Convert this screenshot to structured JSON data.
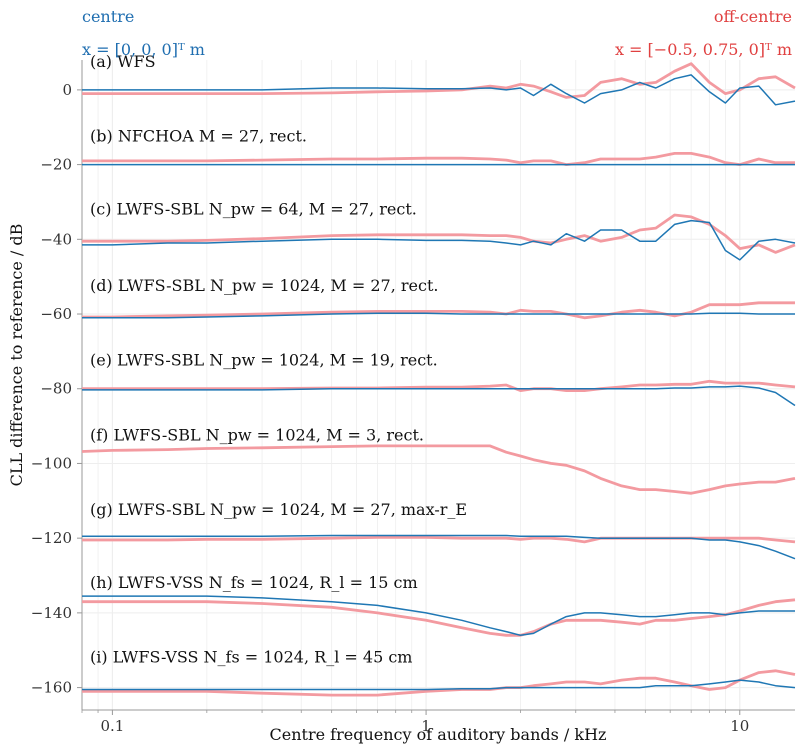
{
  "colors": {
    "centre": "#1f77b4",
    "offcentre": "#f39aa0",
    "grid": "#eeeeee",
    "axis": "#999999",
    "centre_text": "#1f6eb0",
    "offcentre_text": "#e04040"
  },
  "legend": {
    "centre": {
      "name": "centre",
      "position": "x = [0, 0, 0]ᵀ m"
    },
    "offcentre": {
      "name": "off-centre",
      "position": "x = [−0.5, 0.75, 0]ᵀ m"
    }
  },
  "chart_data": {
    "type": "line",
    "xlabel": "Centre frequency of auditory bands / kHz",
    "ylabel": "CLL difference to reference / dB",
    "xscale": "log",
    "xlim": [
      0.08,
      15
    ],
    "ylim": [
      -166,
      8
    ],
    "xticks": [
      {
        "value": 0.1,
        "label": "0.1"
      },
      {
        "value": 1,
        "label": "1"
      },
      {
        "value": 10,
        "label": "10"
      }
    ],
    "yticks": [
      {
        "value": 0,
        "label": "0"
      },
      {
        "value": -20,
        "label": "−20"
      },
      {
        "value": -40,
        "label": "−40"
      },
      {
        "value": -60,
        "label": "−60"
      },
      {
        "value": -80,
        "label": "−80"
      },
      {
        "value": -100,
        "label": "−100"
      },
      {
        "value": -120,
        "label": "−120"
      },
      {
        "value": -140,
        "label": "−140"
      },
      {
        "value": -160,
        "label": "−160"
      }
    ],
    "grid": true,
    "x": [
      0.08,
      0.1,
      0.15,
      0.2,
      0.3,
      0.5,
      0.7,
      1,
      1.3,
      1.6,
      1.8,
      2,
      2.2,
      2.5,
      2.8,
      3.2,
      3.6,
      4.2,
      4.8,
      5.4,
      6.2,
      7,
      8,
      9,
      10,
      11.5,
      13,
      15
    ],
    "panels": [
      {
        "label": "(a) WFS",
        "label_y": 7.5,
        "centre": [
          0,
          0,
          0,
          0,
          0,
          0.5,
          0.5,
          0.3,
          0.3,
          0.5,
          0,
          0.5,
          -1.5,
          1.5,
          -1,
          -3.5,
          -1,
          0,
          2,
          0.5,
          3,
          4,
          -0.5,
          -3.5,
          0.5,
          1,
          -4,
          -3
        ],
        "offcentre": [
          -1,
          -1,
          -1,
          -1,
          -1,
          -0.8,
          -0.5,
          -0.3,
          0,
          1,
          0.5,
          1.5,
          1,
          -0.5,
          -2,
          -1.5,
          2,
          3,
          1.5,
          2,
          5,
          7,
          2,
          -1,
          0,
          3,
          3.5,
          0.5
        ]
      },
      {
        "label": "(b) NFCHOA M = 27, rect.",
        "label_y": -12.5,
        "centre": [
          -20,
          -20,
          -20,
          -20,
          -20,
          -20,
          -20,
          -20,
          -20,
          -20,
          -20,
          -20,
          -20,
          -20,
          -20,
          -20,
          -20,
          -20,
          -20,
          -20,
          -20,
          -20,
          -20,
          -20,
          -20,
          -20,
          -20,
          -20
        ],
        "offcentre": [
          -19,
          -19,
          -19,
          -19,
          -18.8,
          -18.5,
          -18.5,
          -18.3,
          -18.3,
          -18.5,
          -18.8,
          -19.5,
          -19,
          -19,
          -20,
          -19.5,
          -18.5,
          -18.5,
          -18.5,
          -18,
          -17,
          -17,
          -18,
          -19.5,
          -20,
          -18.5,
          -19.5,
          -19.5
        ]
      },
      {
        "label": "(c) LWFS-SBL N_pw = 64, M = 27, rect.",
        "label_y": -32,
        "centre": [
          -41.5,
          -41.5,
          -41,
          -41,
          -40.5,
          -40,
          -40,
          -40.3,
          -40.3,
          -40.5,
          -41,
          -41.5,
          -40.5,
          -41.5,
          -38.5,
          -40.5,
          -37.5,
          -37.5,
          -40.5,
          -40.5,
          -36,
          -35,
          -35.5,
          -43,
          -45.5,
          -40.5,
          -40,
          -41
        ],
        "offcentre": [
          -40.5,
          -40.5,
          -40.5,
          -40.3,
          -39.8,
          -39,
          -38.8,
          -38.8,
          -38.8,
          -39,
          -39,
          -39.5,
          -40.5,
          -41,
          -40,
          -39,
          -40.5,
          -39.5,
          -37.5,
          -37,
          -33.5,
          -34,
          -36,
          -39,
          -42.5,
          -41.5,
          -43.5,
          -41.5
        ]
      },
      {
        "label": "(d) LWFS-SBL N_pw = 1024, M = 27, rect.",
        "label_y": -52.5,
        "centre": [
          -61,
          -61,
          -61,
          -60.8,
          -60.5,
          -60,
          -59.8,
          -59.8,
          -60,
          -60,
          -60,
          -60,
          -60,
          -60,
          -60,
          -60,
          -60,
          -60,
          -60,
          -60,
          -60,
          -60,
          -59.8,
          -59.8,
          -59.8,
          -60,
          -60,
          -60
        ],
        "offcentre": [
          -60.8,
          -60.8,
          -60.5,
          -60.3,
          -60,
          -59.5,
          -59.3,
          -59.3,
          -59.3,
          -59.5,
          -60,
          -59,
          -59.3,
          -59.3,
          -60,
          -61,
          -60.5,
          -59.5,
          -59,
          -59.5,
          -60.5,
          -59.5,
          -57.5,
          -57.5,
          -57.5,
          -57,
          -57,
          -57
        ]
      },
      {
        "label": "(e) LWFS-SBL N_pw = 1024, M = 19, rect.",
        "label_y": -72.5,
        "centre": [
          -80.3,
          -80.3,
          -80.3,
          -80.3,
          -80.3,
          -80,
          -80,
          -80,
          -80,
          -80,
          -80,
          -80,
          -80,
          -80,
          -80,
          -80,
          -80,
          -80,
          -80,
          -80,
          -79.8,
          -79.8,
          -79.5,
          -79.5,
          -79.3,
          -79.8,
          -81,
          -84.5
        ],
        "offcentre": [
          -80,
          -80,
          -80,
          -80,
          -80,
          -79.8,
          -79.8,
          -79.6,
          -79.6,
          -79.3,
          -79,
          -80.5,
          -80,
          -80,
          -80.5,
          -80.5,
          -80,
          -79.5,
          -79,
          -79,
          -78.8,
          -78.8,
          -78,
          -78.5,
          -78.5,
          -78.5,
          -79,
          -79.5
        ]
      },
      {
        "label": "(f) LWFS-SBL N_pw = 1024, M = 3, rect.",
        "label_y": -92.5,
        "centre": [],
        "offcentre": [
          -96.8,
          -96.5,
          -96.3,
          -96,
          -95.8,
          -95.5,
          -95.3,
          -95.3,
          -95.3,
          -95.3,
          -97,
          -98,
          -99,
          -100,
          -100.5,
          -102,
          -104,
          -106,
          -107,
          -107,
          -107.5,
          -108,
          -107,
          -106,
          -105.5,
          -105,
          -105,
          -104
        ]
      },
      {
        "label": "(g) LWFS-SBL N_pw = 1024, M = 27, max-r_E",
        "label_y": -112.5,
        "centre": [
          -119.5,
          -119.5,
          -119.5,
          -119.5,
          -119.5,
          -119.3,
          -119.3,
          -119.3,
          -119.3,
          -119.3,
          -119.3,
          -119.5,
          -119.5,
          -119.5,
          -119.5,
          -119.8,
          -120,
          -120,
          -120,
          -120,
          -120,
          -120,
          -120.5,
          -120.5,
          -121,
          -122,
          -123.5,
          -125.5
        ],
        "offcentre": [
          -120.5,
          -120.5,
          -120.5,
          -120.3,
          -120.3,
          -120,
          -119.8,
          -119.8,
          -120,
          -120,
          -120,
          -120.3,
          -120,
          -120,
          -120.3,
          -121,
          -120,
          -120,
          -120,
          -120,
          -120,
          -120,
          -120,
          -120,
          -120,
          -120,
          -120.5,
          -121
        ]
      },
      {
        "label": "(h) LWFS-VSS N_fs = 1024, R_l = 15 cm",
        "label_y": -132,
        "centre": [
          -135.5,
          -135.5,
          -135.5,
          -135.5,
          -136,
          -137,
          -138,
          -140,
          -142,
          -144,
          -145,
          -146,
          -145.5,
          -143,
          -141,
          -140,
          -140,
          -140.5,
          -141,
          -141,
          -140.5,
          -140,
          -140,
          -140.5,
          -140,
          -139.5,
          -139.5,
          -139.5
        ],
        "offcentre": [
          -137,
          -137,
          -137,
          -137,
          -137.5,
          -138.5,
          -140,
          -142,
          -144,
          -145.5,
          -146,
          -146,
          -145,
          -143,
          -142,
          -142,
          -142,
          -142.5,
          -143,
          -142,
          -142,
          -141.5,
          -141,
          -140.5,
          -139.5,
          -138,
          -137,
          -136.5
        ]
      },
      {
        "label": "(i) LWFS-VSS N_fs = 1024, R_l = 45 cm",
        "label_y": -152,
        "centre": [
          -160.5,
          -160.5,
          -160.5,
          -160.5,
          -160.5,
          -160.5,
          -160.5,
          -160.5,
          -160.3,
          -160.3,
          -160,
          -160,
          -160,
          -160,
          -160,
          -160,
          -160,
          -160,
          -160,
          -159.5,
          -159.5,
          -159.5,
          -159,
          -158.5,
          -158,
          -158.5,
          -159.5,
          -160
        ],
        "offcentre": [
          -161,
          -161,
          -161,
          -161,
          -161.5,
          -162,
          -162,
          -161,
          -160.5,
          -160.5,
          -160,
          -160,
          -159.5,
          -159,
          -158.5,
          -158.5,
          -159,
          -158,
          -157.5,
          -157.5,
          -158.5,
          -159.5,
          -160.5,
          -160,
          -158,
          -156,
          -155.5,
          -156.5
        ]
      }
    ]
  }
}
